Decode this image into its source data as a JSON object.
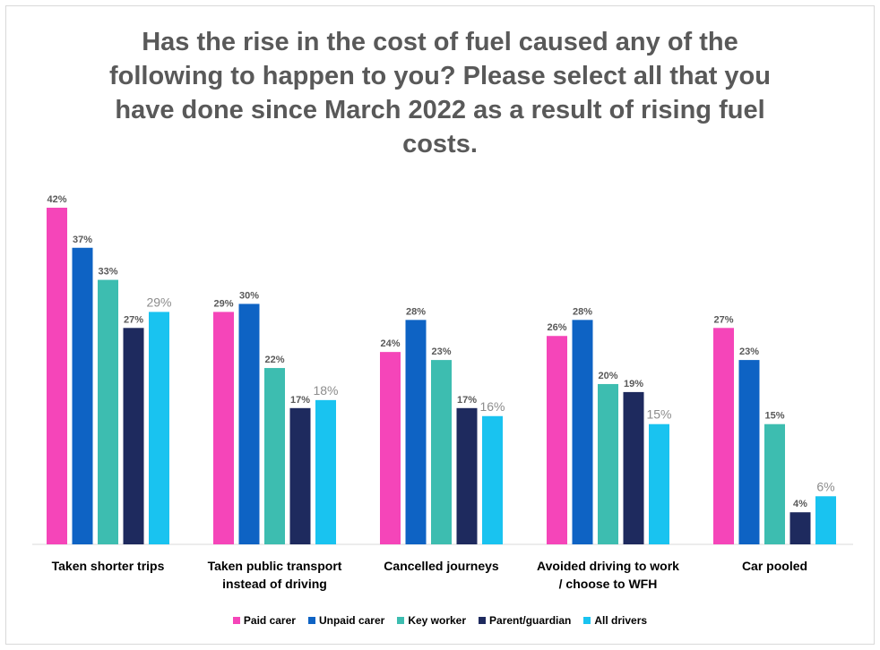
{
  "chart_data": {
    "type": "bar",
    "title": "Has the rise in the cost of fuel caused any of the following to happen to you? Please select all that you have done since March 2022 as a result of rising fuel costs.",
    "title_lines": [
      "Has the rise in the cost of fuel caused any of the",
      "following to happen to you? Please select all that you",
      "have done since March 2022 as a result of rising fuel",
      "costs."
    ],
    "categories": [
      [
        "Taken shorter trips"
      ],
      [
        "Taken public transport",
        "instead of driving"
      ],
      [
        "Cancelled journeys"
      ],
      [
        "Avoided driving to work",
        "/ choose to WFH"
      ],
      [
        "Car pooled"
      ]
    ],
    "series": [
      {
        "name": "Paid carer",
        "color": "#f545b9",
        "values": [
          42,
          29,
          24,
          26,
          27
        ],
        "labels": [
          "42%",
          "29%",
          "24%",
          "26%",
          "27%"
        ]
      },
      {
        "name": "Unpaid carer",
        "color": "#0e63c4",
        "values": [
          37,
          30,
          28,
          28,
          23
        ],
        "labels": [
          "37%",
          "30%",
          "28%",
          "28%",
          "23%"
        ]
      },
      {
        "name": "Key worker",
        "color": "#3dbdb0",
        "values": [
          33,
          22,
          23,
          20,
          15
        ],
        "labels": [
          "33%",
          "22%",
          "23%",
          "20%",
          "15%"
        ]
      },
      {
        "name": "Parent/guardian",
        "color": "#1e2a5e",
        "values": [
          27,
          17,
          17,
          19,
          4
        ],
        "labels": [
          "27%",
          "17%",
          "17%",
          "19%",
          "4%"
        ]
      },
      {
        "name": "All drivers",
        "color": "#19c3f0",
        "values": [
          29,
          18,
          16,
          15,
          6
        ],
        "labels": [
          "29%",
          "18%",
          "16%",
          "15%",
          "6%"
        ]
      }
    ],
    "ylim": [
      0,
      45
    ],
    "grid": false,
    "legend_position": "bottom"
  }
}
